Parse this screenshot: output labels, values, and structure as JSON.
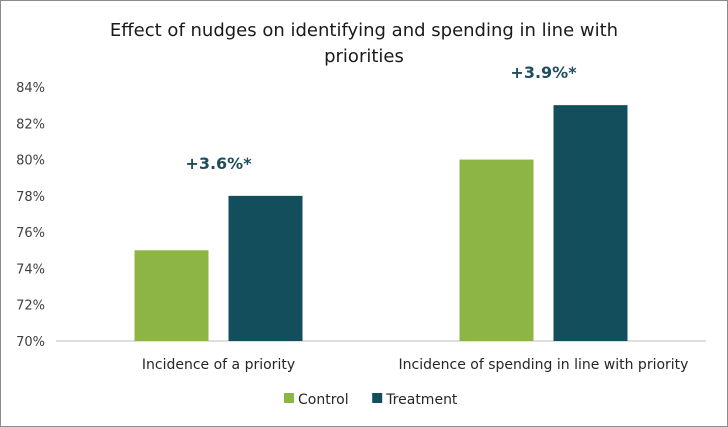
{
  "chart_data": {
    "type": "bar",
    "title_lines": [
      "Effect of nudges on identifying and spending in line with",
      "priorities"
    ],
    "categories": [
      "Incidence of a priority",
      "Incidence of spending in line with priority"
    ],
    "series": [
      {
        "name": "Control",
        "values": [
          75,
          80
        ],
        "color": "#8cb543"
      },
      {
        "name": "Treatment",
        "values": [
          78,
          83
        ],
        "color": "#124e5c"
      }
    ],
    "annotations": [
      "+3.6%*",
      "+3.9%*"
    ],
    "annotation_color": "#1f4e5e",
    "ylim": [
      70,
      84
    ],
    "ytick_step": 2,
    "ytick_suffix": "%",
    "xlabel": "",
    "ylabel": "",
    "grid": false,
    "legend_position": "bottom"
  }
}
